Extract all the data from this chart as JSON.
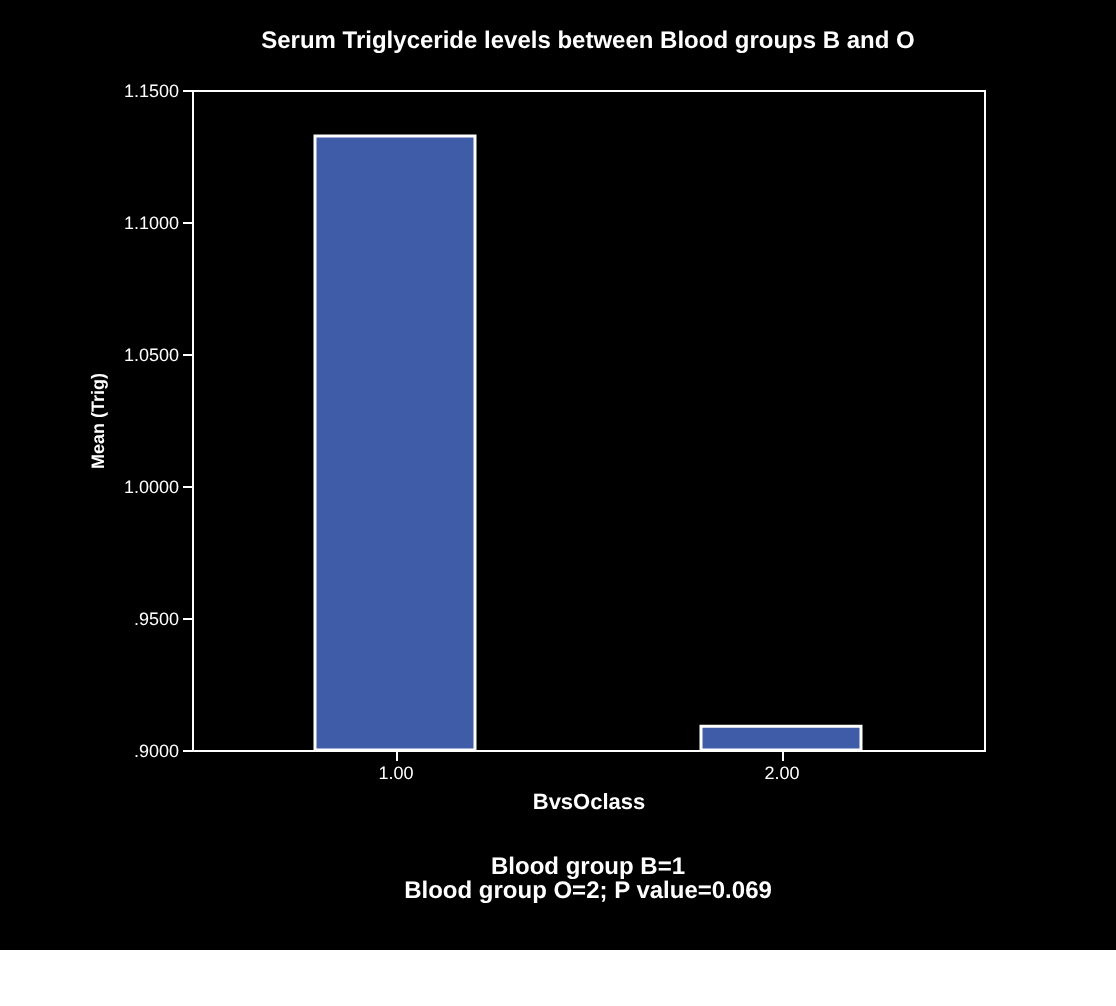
{
  "chart_data": {
    "type": "bar",
    "title": "Serum Triglyceride levels  between Blood groups B and O",
    "xlabel": "BvsOclass",
    "ylabel": "Mean (Trig)",
    "categories": [
      "1.00",
      "2.00"
    ],
    "series": [
      {
        "color": "#3f5ca9",
        "values": [
          1.1326,
          0.909
        ]
      }
    ],
    "ylim": [
      0.9,
      1.15
    ],
    "yticks": [
      {
        "value": 0.9,
        "label": ".9000"
      },
      {
        "value": 0.95,
        "label": ".9500"
      },
      {
        "value": 1.0,
        "label": "1.0000"
      },
      {
        "value": 1.05,
        "label": "1.0500"
      },
      {
        "value": 1.1,
        "label": "1.1000"
      },
      {
        "value": 1.15,
        "label": "1.1500"
      }
    ],
    "grid": false,
    "annotations": [
      "Blood group B=1",
      "Blood group O=2; P value=0.069"
    ]
  }
}
